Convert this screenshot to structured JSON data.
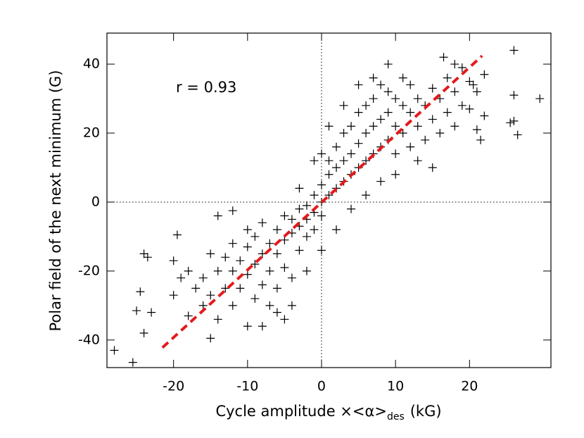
{
  "chart_data": {
    "type": "scatter",
    "xlabel": {
      "main": "Cycle amplitude ×<α>",
      "sub": "des",
      "unit": "(kG)"
    },
    "ylabel": "Polar field of the next minimum (G)",
    "annotation": "r = 0.93",
    "xlim": [
      -29,
      31
    ],
    "ylim": [
      -48,
      49
    ],
    "xticks": [
      -20,
      -10,
      0,
      10,
      20
    ],
    "yticks": [
      -40,
      -20,
      0,
      20,
      40
    ],
    "vlines": [
      0
    ],
    "hlines": [
      0
    ],
    "color": "#000000",
    "x": [
      -28,
      -25.5,
      -24,
      -24.5,
      -25,
      -23,
      -24,
      -23.5,
      -19.5,
      -20,
      -14,
      -12,
      -15,
      26,
      26,
      29.5,
      26.5,
      25.5,
      26,
      21.5,
      21,
      20.5,
      21,
      16.5,
      18,
      9,
      19,
      20,
      22,
      22,
      -20,
      -19,
      -18,
      -17,
      -18,
      -16,
      -16,
      -15,
      -15,
      -14,
      -14,
      -13,
      -13,
      -12,
      -12,
      -12,
      -11,
      -11,
      -10,
      -10,
      -10,
      -10,
      -9,
      -9,
      -9,
      -8,
      -8,
      -8,
      -7,
      -7,
      -7,
      -6,
      -6,
      -6,
      -5,
      -5,
      -5,
      -4,
      -4,
      -4,
      -3,
      -3,
      -3,
      -2,
      -2,
      -2,
      -1,
      -1,
      -1,
      0,
      0,
      0,
      1,
      1,
      1,
      2,
      2,
      2,
      3,
      3,
      3,
      4,
      4,
      4,
      5,
      5,
      5,
      6,
      6,
      6,
      7,
      7,
      7,
      8,
      8,
      8,
      9,
      9,
      10,
      10,
      10,
      11,
      11,
      12,
      12,
      12,
      13,
      13,
      14,
      14,
      15,
      15,
      16,
      16,
      17,
      17,
      18,
      18,
      19,
      20,
      8,
      6,
      4,
      10,
      -6,
      -8,
      -4,
      -2,
      2,
      0,
      -5,
      3,
      1,
      5,
      7,
      0,
      -1,
      -3,
      9,
      11,
      13,
      15
    ],
    "values": [
      -43,
      -46.5,
      -38,
      -26,
      -31.5,
      -32,
      -15,
      -16,
      -9.5,
      -17,
      -4,
      -2.5,
      -39.5,
      44,
      31,
      30,
      19.5,
      23,
      23.5,
      18,
      21,
      34,
      32,
      42,
      40,
      40,
      39,
      27,
      37,
      25,
      -27,
      -22,
      -33,
      -25,
      -20,
      -30,
      -22,
      -15,
      -27,
      -34,
      -20,
      -25,
      -16,
      -30,
      -20,
      -12,
      -25,
      -17,
      -36,
      -21,
      -13,
      -8,
      -28,
      -18,
      -10,
      -24,
      -15,
      -6,
      -30,
      -20,
      -12,
      -25,
      -15,
      -8,
      -19,
      -11,
      -4,
      -22,
      -9,
      -5,
      -14,
      -7,
      -2,
      -10,
      -5,
      -1,
      -8,
      -3,
      2,
      -4,
      0,
      5,
      2,
      8,
      12,
      4,
      10,
      16,
      6,
      12,
      20,
      8,
      14,
      22,
      10,
      17,
      26,
      12,
      20,
      28,
      14,
      22,
      30,
      16,
      24,
      34,
      18,
      26,
      14,
      22,
      30,
      20,
      28,
      16,
      26,
      34,
      22,
      30,
      18,
      28,
      24,
      33,
      20,
      30,
      26,
      36,
      22,
      32,
      28,
      35,
      6,
      2,
      -2,
      8,
      -32,
      -36,
      -30,
      -20,
      -8,
      -14,
      -34,
      28,
      22,
      34,
      36,
      14,
      12,
      4,
      32,
      36,
      12,
      10
    ],
    "fit_line": {
      "x": [
        -21.5,
        21.7
      ],
      "y": [
        -42.2,
        42.4
      ],
      "color": "#e41a1c"
    }
  }
}
